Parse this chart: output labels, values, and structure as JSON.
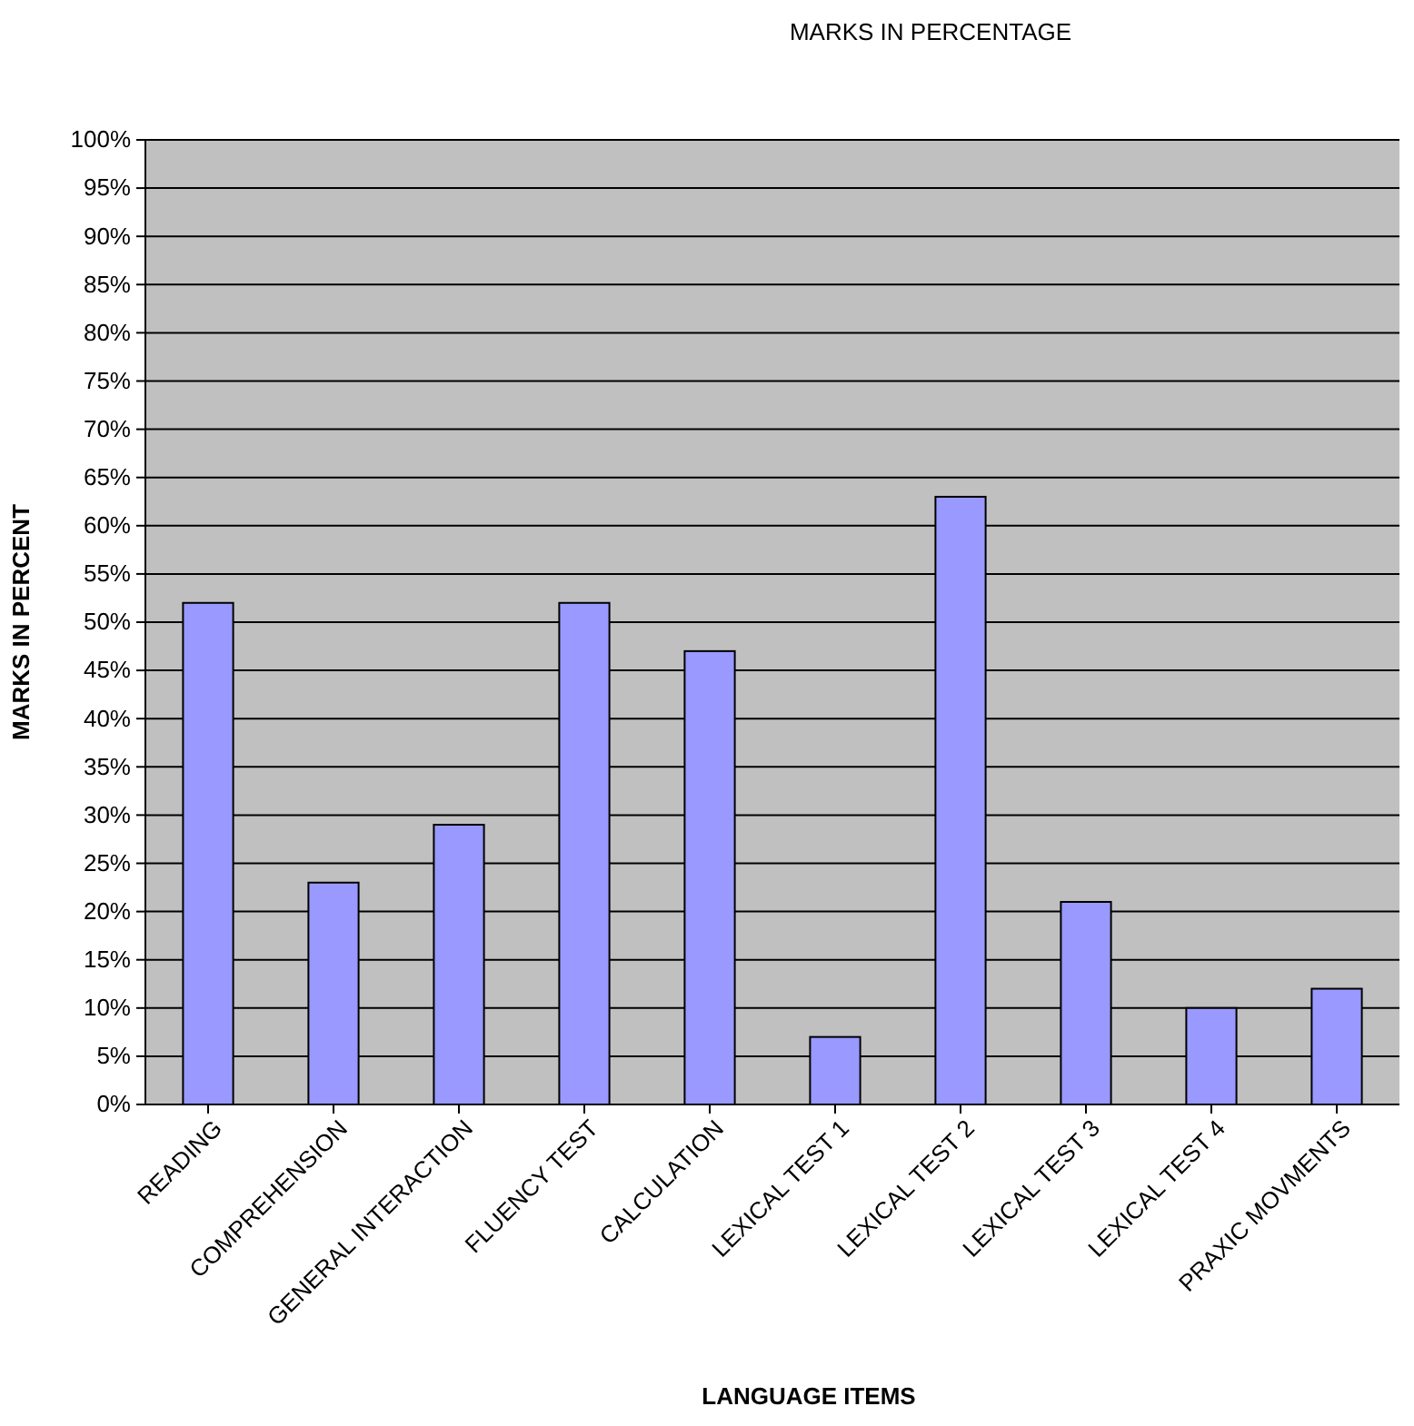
{
  "chart_data": {
    "type": "bar",
    "title": "MARKS IN PERCENTAGE",
    "xlabel": "LANGUAGE ITEMS",
    "ylabel": "MARKS IN PERCENT",
    "categories": [
      "READING",
      "COMPREHENSION",
      "GENERAL INTERACTION",
      "FLUENCY TEST",
      "CALCULATION",
      "LEXICAL TEST 1",
      "LEXICAL TEST 2",
      "LEXICAL TEST 3",
      "LEXICAL TEST 4",
      "PRAXIC MOVMENTS"
    ],
    "values": [
      52,
      23,
      29,
      52,
      47,
      7,
      63,
      21,
      10,
      12
    ],
    "color": "#9999ff",
    "ylim": [
      0,
      100
    ],
    "yticks": [
      {
        "value": 0,
        "label": "0%"
      },
      {
        "value": 5,
        "label": "5%"
      },
      {
        "value": 10,
        "label": "10%"
      },
      {
        "value": 15,
        "label": "15%"
      },
      {
        "value": 20,
        "label": "20%"
      },
      {
        "value": 25,
        "label": "25%"
      },
      {
        "value": 30,
        "label": "30%"
      },
      {
        "value": 35,
        "label": "35%"
      },
      {
        "value": 40,
        "label": "40%"
      },
      {
        "value": 45,
        "label": "45%"
      },
      {
        "value": 50,
        "label": "50%"
      },
      {
        "value": 55,
        "label": "55%"
      },
      {
        "value": 60,
        "label": "60%"
      },
      {
        "value": 65,
        "label": "65%"
      },
      {
        "value": 70,
        "label": "70%"
      },
      {
        "value": 75,
        "label": "75%"
      },
      {
        "value": 80,
        "label": "80%"
      },
      {
        "value": 85,
        "label": "85%"
      },
      {
        "value": 90,
        "label": "90%"
      },
      {
        "value": 95,
        "label": "95%"
      },
      {
        "value": 100,
        "label": "100%"
      }
    ],
    "grid": "y"
  }
}
